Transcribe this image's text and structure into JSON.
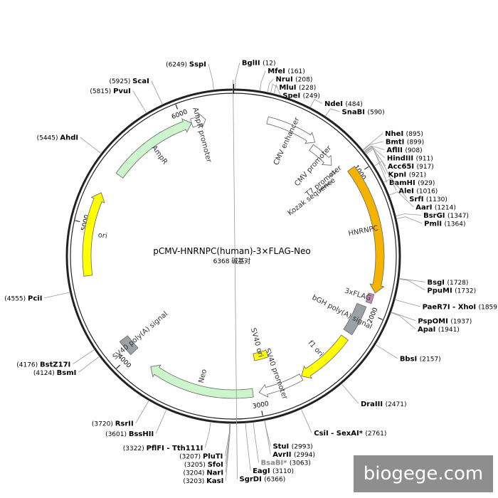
{
  "plasmid": {
    "name": "pCMV-HNRNPC(human)-3×FLAG-Neo",
    "length_label": "6368 碱基对",
    "length": 6368
  },
  "ticks": [
    {
      "pos": 1000,
      "label": "1000"
    },
    {
      "pos": 2000,
      "label": "2000"
    },
    {
      "pos": 3000,
      "label": "3000"
    },
    {
      "pos": 4000,
      "label": "4000"
    },
    {
      "pos": 5000,
      "label": "5000"
    },
    {
      "pos": 6000,
      "label": "6000"
    }
  ],
  "features": [
    {
      "name": "CMV enhancer",
      "label": "CMV enhancer",
      "start": 250,
      "end": 630,
      "color": "#ffffff",
      "kind": "arrow"
    },
    {
      "name": "CMV promoter",
      "label": "CMV promoter",
      "start": 631,
      "end": 835,
      "color": "#ffffff",
      "kind": "arrow"
    },
    {
      "name": "T7 promoter",
      "label": "T7 promoter",
      "start": 880,
      "end": 898,
      "color": "#ffffff",
      "kind": "arrow"
    },
    {
      "name": "Kozak sequence",
      "label": "Kozak sequence",
      "start": 929,
      "end": 938,
      "color": "#999999",
      "kind": "box"
    },
    {
      "name": "HNRNPC",
      "label": "HNRNPC",
      "start": 945,
      "end": 1850,
      "color": "#f5b301",
      "kind": "arrow"
    },
    {
      "name": "3xFLAG",
      "label": "3xFLAG",
      "start": 1862,
      "end": 1928,
      "color": "#c58bb0",
      "kind": "box"
    },
    {
      "name": "bGH poly(A) signal",
      "label": "bGH poly(A) signal",
      "start": 1962,
      "end": 2186,
      "color": "#9aa2a8",
      "kind": "box"
    },
    {
      "name": "f1 ori",
      "label": "f1 ori",
      "start": 2232,
      "end": 2660,
      "color": "#ffff00",
      "kind": "arrow"
    },
    {
      "name": "SV40 promoter",
      "label": "SV40 promoter",
      "start": 2666,
      "end": 2995,
      "color": "#ffffff",
      "kind": "arrow"
    },
    {
      "name": "SV40 ori",
      "label": "SV40 ori",
      "start": 2846,
      "end": 2981,
      "color": "#ffff00",
      "kind": "box"
    },
    {
      "name": "Neo",
      "label": "Neo",
      "start": 3040,
      "end": 3835,
      "color": "#ccf5cc",
      "kind": "arrow"
    },
    {
      "name": "SV40 poly(A) signal",
      "label": "SV40 poly(A) signal",
      "start": 4000,
      "end": 4122,
      "color": "#9aa2a8",
      "kind": "box"
    },
    {
      "name": "ori",
      "label": "ori",
      "start": 4640,
      "end": 5229,
      "color": "#ffff00",
      "kind": "arrow"
    },
    {
      "name": "AmpR",
      "label": "AmpR",
      "start": 5400,
      "end": 6060,
      "color": "#ccf5cc",
      "kind": "arrow"
    },
    {
      "name": "AmpR promoter",
      "label": "AmpR promoter",
      "start": 6060,
      "end": 6165,
      "color": "#ffffff",
      "kind": "arrow"
    }
  ],
  "sites": [
    {
      "name": "BglII",
      "pos": 12,
      "label": "(12)"
    },
    {
      "name": "SgrDI",
      "pos": 6366,
      "label": "(6366)"
    },
    {
      "name": "SspI",
      "pos": 6249,
      "label": "(6249)"
    },
    {
      "name": "ScaI",
      "pos": 5925,
      "label": "(5925)"
    },
    {
      "name": "PvuI",
      "pos": 5815,
      "label": "(5815)"
    },
    {
      "name": "AhdI",
      "pos": 5445,
      "label": "(5445)"
    },
    {
      "name": "PciI",
      "pos": 4555,
      "label": "(4555)"
    },
    {
      "name": "BstZ17I",
      "pos": 4176,
      "label": "(4176)"
    },
    {
      "name": "BsmI",
      "pos": 4124,
      "label": "(4124)"
    },
    {
      "name": "RsrII",
      "pos": 3720,
      "label": "(3720)"
    },
    {
      "name": "BssHII",
      "pos": 3601,
      "label": "(3601)"
    },
    {
      "name": "PflFI - Tth111I",
      "pos": 3322,
      "label": "(3322)"
    },
    {
      "name": "PluTI",
      "pos": 3207,
      "label": "(3207)"
    },
    {
      "name": "SfoI",
      "pos": 3205,
      "label": "(3205)"
    },
    {
      "name": "NarI",
      "pos": 3204,
      "label": "(3204)"
    },
    {
      "name": "KasI",
      "pos": 3203,
      "label": "(3203)"
    },
    {
      "name": "EagI",
      "pos": 3110,
      "label": "(3110)"
    },
    {
      "name": "BsaBI*",
      "pos": 3063,
      "label": "(3063)",
      "gray": true
    },
    {
      "name": "AvrII",
      "pos": 2994,
      "label": "(2994)"
    },
    {
      "name": "StuI",
      "pos": 2993,
      "label": "(2993)"
    },
    {
      "name": "CsiI - SexAI*",
      "pos": 2761,
      "label": "(2761)",
      "gray_part": "SexAI*"
    },
    {
      "name": "DraIII",
      "pos": 2471,
      "label": "(2471)"
    },
    {
      "name": "BbsI",
      "pos": 2157,
      "label": "(2157)"
    },
    {
      "name": "ApaI",
      "pos": 1941,
      "label": "(1941)"
    },
    {
      "name": "PspOMI",
      "pos": 1937,
      "label": "(1937)"
    },
    {
      "name": "PaeR7I - XhoI",
      "pos": 1859,
      "label": "(1859)"
    },
    {
      "name": "PpuMI",
      "pos": 1732,
      "label": "(1732)"
    },
    {
      "name": "BsgI",
      "pos": 1728,
      "label": "(1728)"
    },
    {
      "name": "PmlI",
      "pos": 1364,
      "label": "(1364)"
    },
    {
      "name": "BsrGI",
      "pos": 1347,
      "label": "(1347)"
    },
    {
      "name": "AarI",
      "pos": 1214,
      "label": "(1214)"
    },
    {
      "name": "SrfI",
      "pos": 1130,
      "label": "(1130)"
    },
    {
      "name": "AleI",
      "pos": 1016,
      "label": "(1016)"
    },
    {
      "name": "BamHI",
      "pos": 929,
      "label": "(929)"
    },
    {
      "name": "KpnI",
      "pos": 921,
      "label": "(921)"
    },
    {
      "name": "Acc65I",
      "pos": 917,
      "label": "(917)"
    },
    {
      "name": "HindIII",
      "pos": 911,
      "label": "(911)"
    },
    {
      "name": "AflII",
      "pos": 908,
      "label": "(908)"
    },
    {
      "name": "BmtI",
      "pos": 899,
      "label": "(899)"
    },
    {
      "name": "NheI",
      "pos": 895,
      "label": "(895)"
    },
    {
      "name": "SnaBI",
      "pos": 590,
      "label": "(590)"
    },
    {
      "name": "NdeI",
      "pos": 484,
      "label": "(484)"
    },
    {
      "name": "SpeI",
      "pos": 249,
      "label": "(249)"
    },
    {
      "name": "MluI",
      "pos": 228,
      "label": "(228)"
    },
    {
      "name": "NruI",
      "pos": 208,
      "label": "(208)"
    },
    {
      "name": "MfeI",
      "pos": 161,
      "label": "(161)"
    }
  ],
  "watermark": "biogege.com"
}
